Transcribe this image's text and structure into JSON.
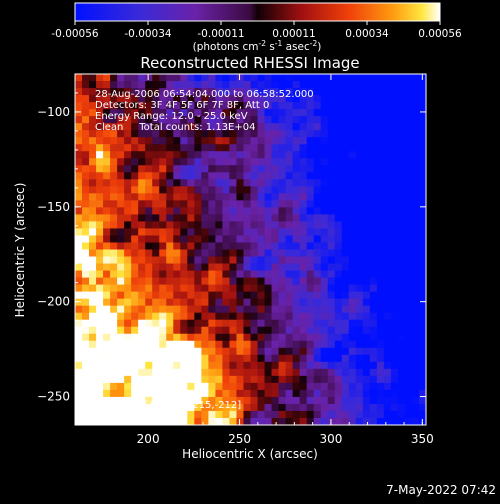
{
  "chart_data": {
    "type": "heatmap",
    "title": "Reconstructed RHESSI Image",
    "xlabel": "Heliocentric X (arcsec)",
    "ylabel": "Heliocentric Y (arcsec)",
    "xlim": [
      160,
      352
    ],
    "ylim": [
      -265,
      -80
    ],
    "xticks": [
      200,
      250,
      300,
      350
    ],
    "yticks": [
      -100,
      -150,
      -200,
      -250
    ],
    "annotations": [
      "28-Aug-2006 06:54:04.000 to 06:58:52.000",
      "Detectors: 3F 4F 5F 6F 7F 8F, Att 0",
      "Energy Range: 12.0 - 25.0 keV",
      "Clean     Total counts: 1.13E+04",
      "Position of Peak = [215,-212]"
    ],
    "colorbar": {
      "range": [
        -0.00056,
        0.00056
      ],
      "ticks": [
        "-0.00056",
        "-0.00034",
        "-0.00011",
        "0.00011",
        "0.00034",
        "0.00056"
      ],
      "label_prefix": "(photons cm",
      "label_exp1": "-2",
      "label_mid": " s",
      "label_exp2": "-1",
      "label_mid2": " asec",
      "label_exp3": "-2",
      "label_suffix": ")"
    },
    "peak": {
      "x": 215,
      "y": -212
    }
  },
  "footer": {
    "timestamp": "7-May-2022 07:42"
  }
}
